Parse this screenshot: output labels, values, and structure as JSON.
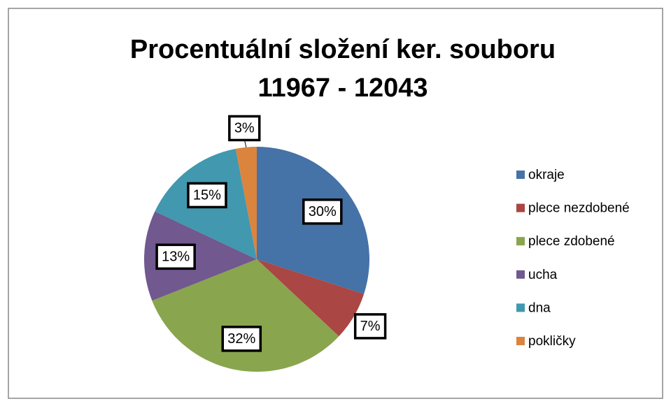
{
  "chart_data": {
    "type": "pie",
    "title": [
      "Procentuální složení ker. souboru",
      "11967 - 12043"
    ],
    "categories": [
      "okraje",
      "plece nezdobené",
      "plece zdobené",
      "ucha",
      "dna",
      "pokličky"
    ],
    "values": [
      30,
      7,
      32,
      13,
      15,
      3
    ],
    "value_labels": [
      "30%",
      "7%",
      "32%",
      "13%",
      "15%",
      "3%"
    ],
    "colors": [
      "#4572a7",
      "#aa4643",
      "#89a54e",
      "#71588f",
      "#4198af",
      "#db843d"
    ],
    "legend": "right"
  }
}
